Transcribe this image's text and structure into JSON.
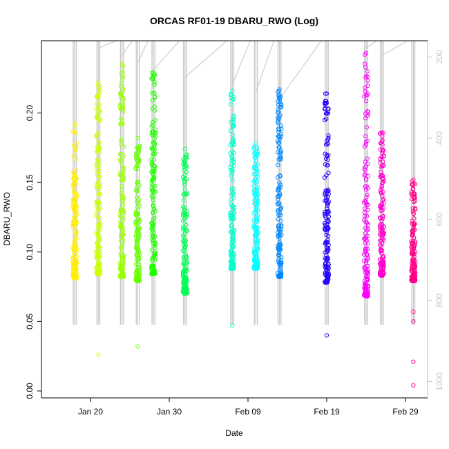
{
  "chart_data": {
    "type": "scatter",
    "title": "ORCAS RF01-19 DBARU_RWO (Log)",
    "xlabel": "Date",
    "ylabel": "DBARU_RWO",
    "x_ticks": [
      "Jan 20",
      "Jan 30",
      "Feb 09",
      "Feb 19",
      "Feb 29"
    ],
    "y_ticks": [
      "0.00",
      "0.05",
      "0.10",
      "0.15",
      "0.20"
    ],
    "right_axis_ticks": [
      "200",
      "400",
      "600",
      "800",
      "1000"
    ],
    "ylim": [
      -0.005,
      0.252
    ],
    "right_axis_range": [
      1040,
      160
    ],
    "right_axis_reversed": true,
    "grid": false,
    "point_marker": "open-circle",
    "flights": [
      {
        "date": "2016-01-18",
        "color": "#ffee00",
        "y_min": 0.081,
        "y_max": 0.192,
        "outliers": []
      },
      {
        "date": "2016-01-21",
        "color": "#ccff00",
        "y_min": 0.084,
        "y_max": 0.222,
        "outliers": [
          0.026
        ]
      },
      {
        "date": "2016-01-24",
        "color": "#99ff00",
        "y_min": 0.082,
        "y_max": 0.235,
        "outliers": []
      },
      {
        "date": "2016-01-26",
        "color": "#66ff00",
        "y_min": 0.079,
        "y_max": 0.182,
        "outliers": [
          0.032
        ]
      },
      {
        "date": "2016-01-28",
        "color": "#22ff00",
        "y_min": 0.084,
        "y_max": 0.229,
        "outliers": []
      },
      {
        "date": "2016-02-01",
        "color": "#00ff55",
        "y_min": 0.07,
        "y_max": 0.174,
        "outliers": []
      },
      {
        "date": "2016-02-07",
        "color": "#00ffcc",
        "y_min": 0.088,
        "y_max": 0.216,
        "outliers": [
          0.047
        ]
      },
      {
        "date": "2016-02-10",
        "color": "#00ffff",
        "y_min": 0.088,
        "y_max": 0.178,
        "outliers": []
      },
      {
        "date": "2016-02-13",
        "color": "#0088ff",
        "y_min": 0.082,
        "y_max": 0.217,
        "outliers": []
      },
      {
        "date": "2016-02-19",
        "color": "#2200ff",
        "y_min": 0.078,
        "y_max": 0.214,
        "outliers": [
          0.04
        ]
      },
      {
        "date": "2016-02-24",
        "color": "#ff00ff",
        "y_min": 0.068,
        "y_max": 0.243,
        "outliers": []
      },
      {
        "date": "2016-02-26",
        "color": "#ff00cc",
        "y_min": 0.083,
        "y_max": 0.186,
        "outliers": []
      },
      {
        "date": "2016-03-01",
        "color": "#ff0088",
        "y_min": 0.079,
        "y_max": 0.152,
        "outliers": [
          0.057,
          0.05,
          0.021,
          0.004
        ]
      }
    ]
  }
}
